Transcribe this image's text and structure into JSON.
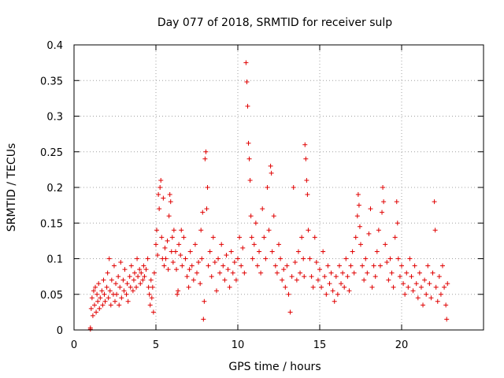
{
  "chart_data": {
    "type": "scatter",
    "title": "Day 077 of 2018, SRMTID for receiver sulp",
    "xlabel": "GPS time / hours",
    "ylabel": "SRMTID / TECUs",
    "xlim": [
      0,
      25
    ],
    "ylim": [
      0,
      0.4
    ],
    "xticks": [
      0,
      5,
      10,
      15,
      20
    ],
    "yticks": [
      0,
      0.05,
      0.1,
      0.15,
      0.2,
      0.25,
      0.3,
      0.35,
      0.4
    ],
    "xtick_labels": [
      "0",
      "5",
      "10",
      "15",
      "20"
    ],
    "ytick_labels": [
      "0",
      "0.05",
      "0.1",
      "0.15",
      "0.2",
      "0.25",
      "0.3",
      "0.35",
      "0.4"
    ],
    "grid": true,
    "marker": "+",
    "color": "#e00000",
    "series": [
      {
        "name": "SRMTID",
        "points": [
          [
            1.0,
            0.001
          ],
          [
            1.0,
            0.003
          ],
          [
            1.05,
            0.03
          ],
          [
            1.1,
            0.045
          ],
          [
            1.15,
            0.02
          ],
          [
            1.2,
            0.055
          ],
          [
            1.25,
            0.035
          ],
          [
            1.3,
            0.06
          ],
          [
            1.35,
            0.025
          ],
          [
            1.4,
            0.05
          ],
          [
            1.45,
            0.04
          ],
          [
            1.5,
            0.065
          ],
          [
            1.55,
            0.03
          ],
          [
            1.6,
            0.045
          ],
          [
            1.7,
            0.055
          ],
          [
            1.75,
            0.035
          ],
          [
            1.8,
            0.07
          ],
          [
            1.85,
            0.05
          ],
          [
            1.9,
            0.04
          ],
          [
            2.0,
            0.06
          ],
          [
            2.05,
            0.08
          ],
          [
            2.1,
            0.045
          ],
          [
            2.15,
            0.1
          ],
          [
            2.2,
            0.055
          ],
          [
            2.25,
            0.035
          ],
          [
            2.3,
            0.07
          ],
          [
            2.4,
            0.05
          ],
          [
            2.45,
            0.09
          ],
          [
            2.5,
            0.04
          ],
          [
            2.55,
            0.065
          ],
          [
            2.6,
            0.05
          ],
          [
            2.7,
            0.075
          ],
          [
            2.75,
            0.035
          ],
          [
            2.8,
            0.06
          ],
          [
            2.85,
            0.095
          ],
          [
            2.9,
            0.045
          ],
          [
            3.0,
            0.07
          ],
          [
            3.05,
            0.055
          ],
          [
            3.1,
            0.085
          ],
          [
            3.2,
            0.05
          ],
          [
            3.25,
            0.065
          ],
          [
            3.3,
            0.04
          ],
          [
            3.4,
            0.075
          ],
          [
            3.45,
            0.06
          ],
          [
            3.5,
            0.09
          ],
          [
            3.6,
            0.055
          ],
          [
            3.65,
            0.07
          ],
          [
            3.7,
            0.08
          ],
          [
            3.8,
            0.06
          ],
          [
            3.85,
            0.1
          ],
          [
            3.9,
            0.075
          ],
          [
            4.0,
            0.085
          ],
          [
            4.05,
            0.065
          ],
          [
            4.1,
            0.08
          ],
          [
            4.2,
            0.07
          ],
          [
            4.25,
            0.09
          ],
          [
            4.3,
            0.075
          ],
          [
            4.4,
            0.085
          ],
          [
            4.5,
            0.1
          ],
          [
            4.55,
            0.06
          ],
          [
            4.6,
            0.05
          ],
          [
            4.65,
            0.035
          ],
          [
            4.7,
            0.07
          ],
          [
            4.75,
            0.045
          ],
          [
            4.8,
            0.06
          ],
          [
            4.85,
            0.025
          ],
          [
            4.9,
            0.08
          ],
          [
            5.0,
            0.12
          ],
          [
            5.05,
            0.14
          ],
          [
            5.1,
            0.105
          ],
          [
            5.15,
            0.19
          ],
          [
            5.2,
            0.17
          ],
          [
            5.25,
            0.2
          ],
          [
            5.3,
            0.21
          ],
          [
            5.35,
            0.13
          ],
          [
            5.4,
            0.1
          ],
          [
            5.45,
            0.185
          ],
          [
            5.5,
            0.09
          ],
          [
            5.55,
            0.115
          ],
          [
            5.6,
            0.1
          ],
          [
            5.7,
            0.125
          ],
          [
            5.75,
            0.085
          ],
          [
            5.8,
            0.16
          ],
          [
            5.85,
            0.19
          ],
          [
            5.9,
            0.18
          ],
          [
            5.95,
            0.11
          ],
          [
            6.0,
            0.13
          ],
          [
            6.05,
            0.095
          ],
          [
            6.1,
            0.14
          ],
          [
            6.2,
            0.11
          ],
          [
            6.25,
            0.085
          ],
          [
            6.3,
            0.05
          ],
          [
            6.35,
            0.055
          ],
          [
            6.4,
            0.12
          ],
          [
            6.5,
            0.105
          ],
          [
            6.55,
            0.14
          ],
          [
            6.6,
            0.09
          ],
          [
            6.7,
            0.13
          ],
          [
            6.8,
            0.1
          ],
          [
            6.9,
            0.075
          ],
          [
            7.0,
            0.06
          ],
          [
            7.05,
            0.085
          ],
          [
            7.1,
            0.11
          ],
          [
            7.2,
            0.09
          ],
          [
            7.3,
            0.07
          ],
          [
            7.4,
            0.12
          ],
          [
            7.5,
            0.08
          ],
          [
            7.6,
            0.095
          ],
          [
            7.7,
            0.065
          ],
          [
            7.75,
            0.14
          ],
          [
            7.8,
            0.1
          ],
          [
            7.85,
            0.165
          ],
          [
            7.9,
            0.015
          ],
          [
            7.95,
            0.04
          ],
          [
            8.0,
            0.24
          ],
          [
            8.05,
            0.25
          ],
          [
            8.1,
            0.17
          ],
          [
            8.15,
            0.2
          ],
          [
            8.2,
            0.09
          ],
          [
            8.3,
            0.11
          ],
          [
            8.4,
            0.075
          ],
          [
            8.5,
            0.13
          ],
          [
            8.6,
            0.095
          ],
          [
            8.7,
            0.055
          ],
          [
            8.8,
            0.1
          ],
          [
            8.9,
            0.08
          ],
          [
            9.0,
            0.12
          ],
          [
            9.1,
            0.09
          ],
          [
            9.2,
            0.07
          ],
          [
            9.3,
            0.105
          ],
          [
            9.4,
            0.085
          ],
          [
            9.5,
            0.06
          ],
          [
            9.6,
            0.11
          ],
          [
            9.7,
            0.08
          ],
          [
            9.8,
            0.095
          ],
          [
            9.9,
            0.07
          ],
          [
            10.0,
            0.1
          ],
          [
            10.1,
            0.13
          ],
          [
            10.2,
            0.09
          ],
          [
            10.3,
            0.115
          ],
          [
            10.4,
            0.08
          ],
          [
            10.5,
            0.375
          ],
          [
            10.55,
            0.348
          ],
          [
            10.6,
            0.314
          ],
          [
            10.65,
            0.262
          ],
          [
            10.7,
            0.24
          ],
          [
            10.75,
            0.21
          ],
          [
            10.8,
            0.16
          ],
          [
            10.85,
            0.13
          ],
          [
            10.9,
            0.1
          ],
          [
            11.0,
            0.12
          ],
          [
            11.1,
            0.15
          ],
          [
            11.2,
            0.09
          ],
          [
            11.3,
            0.11
          ],
          [
            11.4,
            0.08
          ],
          [
            11.5,
            0.17
          ],
          [
            11.6,
            0.13
          ],
          [
            11.7,
            0.1
          ],
          [
            11.8,
            0.2
          ],
          [
            11.9,
            0.14
          ],
          [
            12.0,
            0.23
          ],
          [
            12.05,
            0.22
          ],
          [
            12.1,
            0.11
          ],
          [
            12.2,
            0.16
          ],
          [
            12.3,
            0.09
          ],
          [
            12.4,
            0.08
          ],
          [
            12.5,
            0.12
          ],
          [
            12.6,
            0.1
          ],
          [
            12.7,
            0.07
          ],
          [
            12.8,
            0.085
          ],
          [
            12.9,
            0.06
          ],
          [
            13.0,
            0.09
          ],
          [
            13.1,
            0.05
          ],
          [
            13.2,
            0.025
          ],
          [
            13.3,
            0.075
          ],
          [
            13.4,
            0.2
          ],
          [
            13.5,
            0.095
          ],
          [
            13.6,
            0.07
          ],
          [
            13.7,
            0.11
          ],
          [
            13.8,
            0.08
          ],
          [
            13.9,
            0.13
          ],
          [
            14.0,
            0.1
          ],
          [
            14.05,
            0.075
          ],
          [
            14.1,
            0.26
          ],
          [
            14.15,
            0.24
          ],
          [
            14.2,
            0.21
          ],
          [
            14.25,
            0.19
          ],
          [
            14.3,
            0.14
          ],
          [
            14.4,
            0.1
          ],
          [
            14.5,
            0.075
          ],
          [
            14.6,
            0.06
          ],
          [
            14.7,
            0.13
          ],
          [
            14.8,
            0.095
          ],
          [
            14.9,
            0.07
          ],
          [
            15.0,
            0.085
          ],
          [
            15.1,
            0.06
          ],
          [
            15.2,
            0.11
          ],
          [
            15.3,
            0.075
          ],
          [
            15.4,
            0.05
          ],
          [
            15.5,
            0.09
          ],
          [
            15.6,
            0.065
          ],
          [
            15.7,
            0.08
          ],
          [
            15.8,
            0.055
          ],
          [
            15.9,
            0.04
          ],
          [
            16.0,
            0.075
          ],
          [
            16.1,
            0.05
          ],
          [
            16.2,
            0.09
          ],
          [
            16.3,
            0.065
          ],
          [
            16.4,
            0.08
          ],
          [
            16.5,
            0.06
          ],
          [
            16.6,
            0.1
          ],
          [
            16.7,
            0.075
          ],
          [
            16.8,
            0.055
          ],
          [
            16.9,
            0.09
          ],
          [
            17.0,
            0.11
          ],
          [
            17.1,
            0.08
          ],
          [
            17.2,
            0.13
          ],
          [
            17.3,
            0.16
          ],
          [
            17.35,
            0.19
          ],
          [
            17.4,
            0.175
          ],
          [
            17.45,
            0.145
          ],
          [
            17.5,
            0.12
          ],
          [
            17.6,
            0.09
          ],
          [
            17.7,
            0.07
          ],
          [
            17.8,
            0.1
          ],
          [
            17.9,
            0.08
          ],
          [
            18.0,
            0.135
          ],
          [
            18.1,
            0.17
          ],
          [
            18.2,
            0.06
          ],
          [
            18.3,
            0.09
          ],
          [
            18.4,
            0.075
          ],
          [
            18.5,
            0.11
          ],
          [
            18.6,
            0.14
          ],
          [
            18.7,
            0.09
          ],
          [
            18.8,
            0.165
          ],
          [
            18.85,
            0.2
          ],
          [
            18.9,
            0.18
          ],
          [
            19.0,
            0.12
          ],
          [
            19.1,
            0.095
          ],
          [
            19.2,
            0.07
          ],
          [
            19.3,
            0.1
          ],
          [
            19.4,
            0.08
          ],
          [
            19.5,
            0.06
          ],
          [
            19.6,
            0.13
          ],
          [
            19.7,
            0.18
          ],
          [
            19.75,
            0.15
          ],
          [
            19.8,
            0.1
          ],
          [
            19.9,
            0.075
          ],
          [
            20.0,
            0.09
          ],
          [
            20.1,
            0.065
          ],
          [
            20.2,
            0.05
          ],
          [
            20.3,
            0.08
          ],
          [
            20.4,
            0.06
          ],
          [
            20.5,
            0.1
          ],
          [
            20.6,
            0.075
          ],
          [
            20.7,
            0.055
          ],
          [
            20.8,
            0.09
          ],
          [
            20.9,
            0.065
          ],
          [
            21.0,
            0.045
          ],
          [
            21.1,
            0.08
          ],
          [
            21.2,
            0.06
          ],
          [
            21.3,
            0.035
          ],
          [
            21.4,
            0.07
          ],
          [
            21.5,
            0.05
          ],
          [
            21.6,
            0.09
          ],
          [
            21.7,
            0.065
          ],
          [
            21.8,
            0.045
          ],
          [
            21.9,
            0.08
          ],
          [
            22.0,
            0.18
          ],
          [
            22.05,
            0.14
          ],
          [
            22.1,
            0.06
          ],
          [
            22.2,
            0.04
          ],
          [
            22.3,
            0.075
          ],
          [
            22.4,
            0.05
          ],
          [
            22.5,
            0.09
          ],
          [
            22.6,
            0.06
          ],
          [
            22.7,
            0.035
          ],
          [
            22.75,
            0.015
          ],
          [
            22.8,
            0.065
          ]
        ]
      }
    ]
  }
}
